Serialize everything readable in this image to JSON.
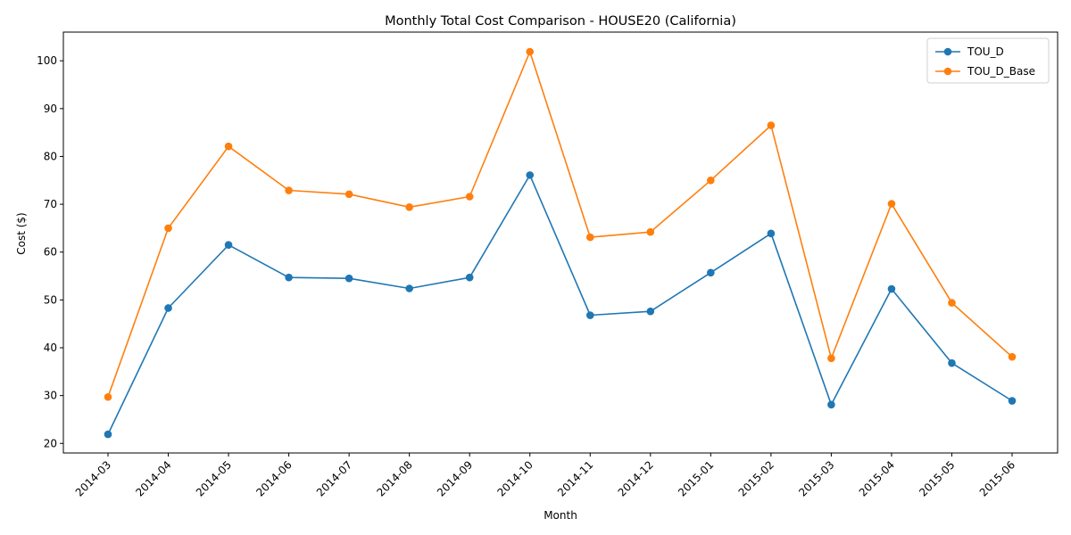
{
  "chart_data": {
    "type": "line",
    "title": "Monthly Total Cost Comparison - HOUSE20 (California)",
    "xlabel": "Month",
    "ylabel": "Cost ($)",
    "categories": [
      "2014-03",
      "2014-04",
      "2014-05",
      "2014-06",
      "2014-07",
      "2014-08",
      "2014-09",
      "2014-10",
      "2014-11",
      "2014-12",
      "2015-01",
      "2015-02",
      "2015-03",
      "2015-04",
      "2015-05",
      "2015-06"
    ],
    "ylim": [
      18,
      106
    ],
    "yticks": [
      20,
      30,
      40,
      50,
      60,
      70,
      80,
      90,
      100
    ],
    "grid": false,
    "legend_position": "top-right",
    "series": [
      {
        "name": "TOU_D",
        "color": "#1f77b4",
        "values": [
          21.9,
          48.3,
          61.5,
          54.7,
          54.5,
          52.4,
          54.7,
          76.1,
          46.8,
          47.6,
          55.7,
          63.9,
          28.1,
          52.3,
          36.8,
          28.9
        ]
      },
      {
        "name": "TOU_D_Base",
        "color": "#ff7f0e",
        "values": [
          29.7,
          65.0,
          82.1,
          72.9,
          72.1,
          69.4,
          71.6,
          101.9,
          63.1,
          64.2,
          75.0,
          86.5,
          37.8,
          70.1,
          49.4,
          38.1
        ]
      }
    ]
  }
}
